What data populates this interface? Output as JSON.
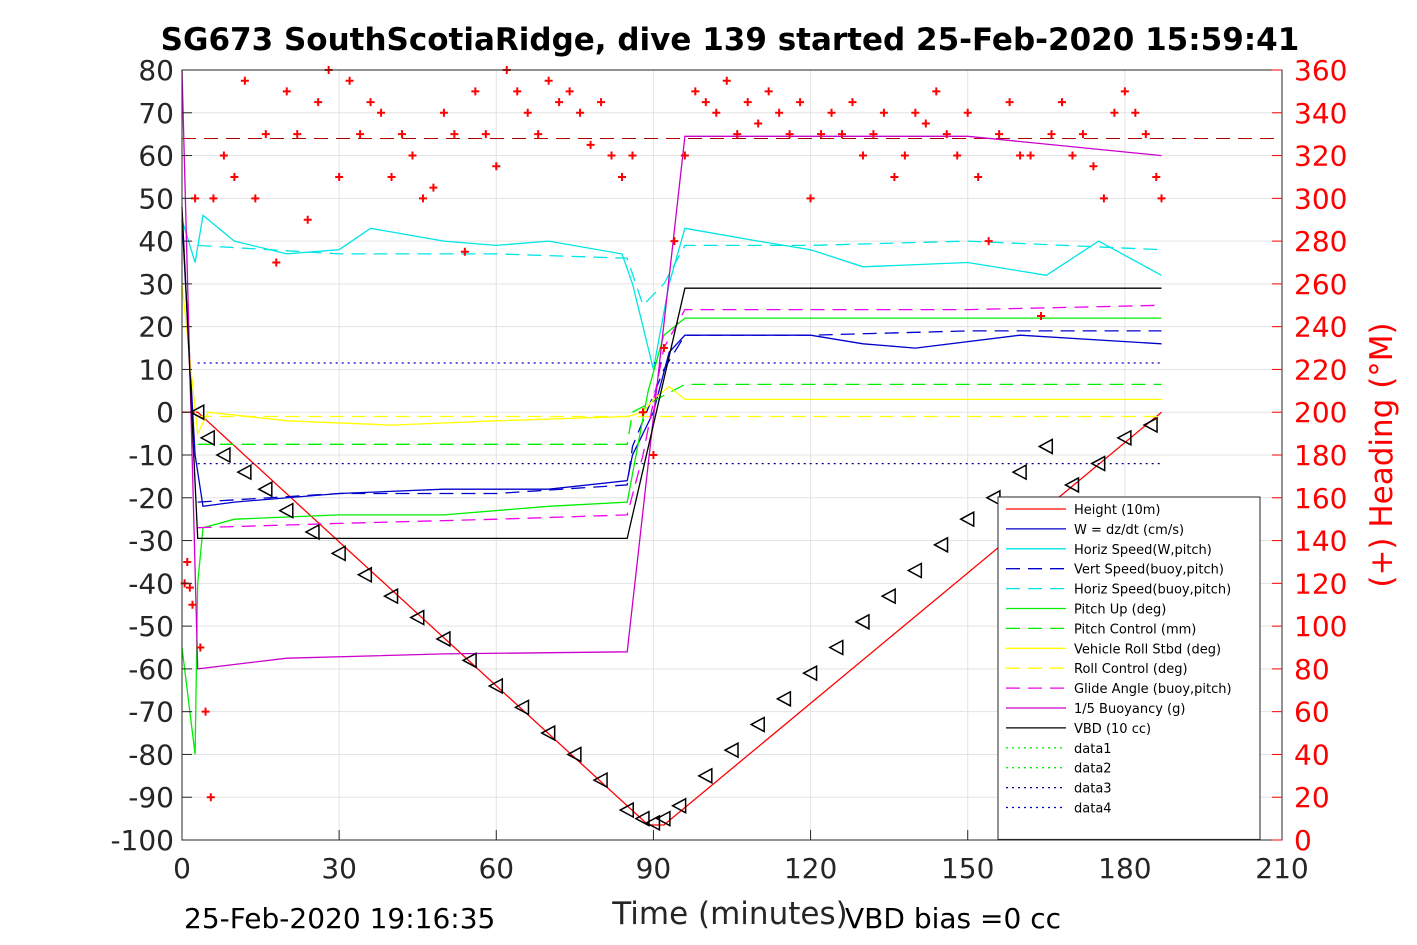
{
  "chart_data": {
    "type": "line",
    "title": "SG673 SouthScotiaRidge, dive 139 started 25-Feb-2020 15:59:41",
    "xlabel": "Time (minutes)",
    "ylabel_right": "(+) Heading (°M)",
    "footer_left": "25-Feb-2020 19:16:35",
    "footer_right": "VBD bias =0 cc",
    "xlim": [
      0,
      210
    ],
    "ylim": [
      -100,
      80
    ],
    "ylim_right": [
      0,
      360
    ],
    "xticks": [
      0,
      30,
      60,
      90,
      120,
      150,
      180,
      210
    ],
    "yticks": [
      -100,
      -90,
      -80,
      -70,
      -60,
      -50,
      -40,
      -30,
      -20,
      -10,
      0,
      10,
      20,
      30,
      40,
      50,
      60,
      70,
      80
    ],
    "yticks_right": [
      0,
      20,
      40,
      60,
      80,
      100,
      120,
      140,
      160,
      180,
      200,
      220,
      240,
      260,
      280,
      300,
      320,
      340,
      360
    ],
    "grid": true,
    "legend_position": "bottom-right",
    "colors": {
      "height": "#ff0000",
      "w": "#0000cc",
      "horiz_speed": "#00e5e5",
      "pitch": "#00ee00",
      "roll": "#ffff00",
      "glide": "#ee00ee",
      "buoyancy": "#cc00cc",
      "vbd": "#000000",
      "heading": "#ff0000",
      "data3": "#000080",
      "data4": "#0000cc"
    },
    "series": [
      {
        "name": "Height (10m)",
        "key": "height",
        "style": "solid",
        "x": [
          0,
          3,
          89,
          92,
          187
        ],
        "y": [
          0,
          0,
          -96.5,
          -96.5,
          0
        ]
      },
      {
        "name": "W = dz/dt (cm/s)",
        "key": "w",
        "style": "solid",
        "x": [
          0,
          2.5,
          4,
          10,
          30,
          50,
          70,
          85,
          86,
          88,
          90,
          93,
          96,
          120,
          130,
          140,
          160,
          187
        ],
        "y": [
          45,
          -10,
          -22,
          -21,
          -19,
          -18,
          -18,
          -16,
          -10,
          -5,
          0,
          14,
          18,
          18,
          16,
          15,
          18,
          16
        ]
      },
      {
        "name": "Horiz Speed(W,pitch)",
        "key": "horiz_speed",
        "style": "solid",
        "x": [
          0,
          2.5,
          4,
          10,
          20,
          30,
          36,
          50,
          60,
          70,
          84,
          86,
          88,
          90,
          93,
          96,
          110,
          120,
          130,
          150,
          165,
          175,
          187
        ],
        "y": [
          45,
          35,
          46,
          40,
          37,
          38,
          43,
          40,
          39,
          40,
          37,
          30,
          20,
          10,
          30,
          43,
          40,
          38,
          34,
          35,
          32,
          40,
          32
        ]
      },
      {
        "name": "Vert Speed(buoy,pitch)",
        "key": "w",
        "style": "dash",
        "x": [
          3,
          30,
          60,
          85,
          86,
          88,
          92,
          96,
          120,
          150,
          187
        ],
        "y": [
          -21,
          -19,
          -19,
          -17,
          -8,
          -2,
          10,
          18,
          18,
          19,
          19
        ]
      },
      {
        "name": "Horiz Speed(buoy,pitch)",
        "key": "horiz_speed",
        "style": "dash",
        "x": [
          3,
          30,
          60,
          85,
          88,
          92,
          96,
          120,
          150,
          187
        ],
        "y": [
          39,
          37,
          37,
          36,
          25,
          30,
          39,
          39,
          40,
          38
        ]
      },
      {
        "name": "Pitch Up (deg)",
        "key": "pitch",
        "style": "solid",
        "x": [
          0,
          2.5,
          3,
          4,
          10,
          30,
          50,
          70,
          85,
          87,
          89,
          92,
          96,
          120,
          150,
          187
        ],
        "y": [
          -55,
          -80,
          -40,
          -27,
          -25,
          -24,
          -24,
          -22,
          -21,
          -8,
          5,
          18,
          22,
          22,
          22,
          22
        ]
      },
      {
        "name": "Pitch Control (mm)",
        "key": "pitch",
        "style": "dash",
        "x": [
          3,
          85,
          86,
          96,
          187
        ],
        "y": [
          -7.5,
          -7.5,
          0,
          6.5,
          6.5
        ]
      },
      {
        "name": "Vehicle Roll Stbd (deg)",
        "key": "roll",
        "style": "solid",
        "x": [
          0,
          3,
          5,
          20,
          40,
          60,
          85,
          88,
          90,
          93,
          96,
          120,
          150,
          187
        ],
        "y": [
          30,
          -5,
          0,
          -2,
          -3,
          -2,
          -1,
          0,
          3,
          6,
          3,
          3,
          3,
          3
        ]
      },
      {
        "name": "Roll Control (deg)",
        "key": "roll",
        "style": "dash",
        "x": [
          3,
          85,
          187
        ],
        "y": [
          -1,
          -1,
          -1
        ]
      },
      {
        "name": "Glide Angle (buoy,pitch)",
        "key": "glide",
        "style": "dash",
        "x": [
          3,
          30,
          60,
          85,
          88,
          92,
          96,
          120,
          150,
          187
        ],
        "y": [
          -27,
          -26,
          -25,
          -24,
          -10,
          15,
          24,
          24,
          24,
          25
        ]
      },
      {
        "name": "1/5 Buoyancy (g)",
        "key": "buoyancy",
        "style": "solid",
        "x": [
          0,
          3,
          20,
          50,
          85,
          96,
          120,
          150,
          187
        ],
        "y": [
          80,
          -60,
          -57.5,
          -56.5,
          -56,
          64.5,
          64.5,
          64.5,
          60
        ]
      },
      {
        "name": "VBD (10 cc)",
        "key": "vbd",
        "style": "solid",
        "x": [
          0,
          3,
          85,
          96,
          187
        ],
        "y": [
          48,
          -29.5,
          -29.5,
          29,
          29
        ]
      },
      {
        "name": "data1",
        "key": "pitch",
        "style": "dot",
        "x": [],
        "y": []
      },
      {
        "name": "data2",
        "key": "pitch",
        "style": "dot",
        "x": [],
        "y": []
      },
      {
        "name": "data3",
        "key": "data3",
        "style": "dot",
        "x": [
          3,
          187
        ],
        "y": [
          -12,
          -12
        ]
      },
      {
        "name": "data4",
        "key": "data4",
        "style": "dot",
        "x": [
          3,
          187
        ],
        "y": [
          11.5,
          11.5
        ]
      }
    ],
    "reference_line": {
      "y_right": 328,
      "style": "dash",
      "color": "#aa0000"
    },
    "heading_markers": {
      "marker": "+",
      "axis": "right",
      "x": [
        0.5,
        1,
        1.5,
        2,
        2.5,
        3.5,
        4.5,
        5.5,
        6,
        8,
        10,
        12,
        14,
        16,
        18,
        20,
        22,
        24,
        26,
        28,
        30,
        32,
        34,
        36,
        38,
        40,
        42,
        44,
        46,
        48,
        50,
        52,
        54,
        56,
        58,
        60,
        62,
        64,
        66,
        68,
        70,
        72,
        74,
        76,
        78,
        80,
        82,
        84,
        86,
        88,
        90,
        92,
        94,
        96,
        98,
        100,
        102,
        104,
        106,
        108,
        110,
        112,
        114,
        116,
        118,
        120,
        122,
        124,
        126,
        128,
        130,
        132,
        134,
        136,
        138,
        140,
        142,
        144,
        146,
        148,
        150,
        152,
        154,
        156,
        158,
        160,
        162,
        164,
        166,
        168,
        170,
        172,
        174,
        176,
        178,
        180,
        182,
        184,
        186,
        187
      ],
      "y": [
        120,
        130,
        118,
        110,
        300,
        90,
        60,
        20,
        300,
        320,
        310,
        355,
        300,
        330,
        270,
        350,
        330,
        290,
        345,
        360,
        310,
        355,
        330,
        345,
        340,
        310,
        330,
        320,
        300,
        305,
        340,
        330,
        275,
        350,
        330,
        315,
        360,
        350,
        340,
        330,
        355,
        345,
        350,
        340,
        325,
        345,
        320,
        310,
        320,
        200,
        180,
        230,
        280,
        320,
        350,
        345,
        340,
        355,
        330,
        345,
        335,
        350,
        340,
        330,
        345,
        300,
        330,
        340,
        330,
        345,
        320,
        330,
        340,
        310,
        320,
        340,
        335,
        350,
        330,
        320,
        340,
        310,
        280,
        330,
        345,
        320,
        320,
        245,
        330,
        345,
        320,
        330,
        315,
        300,
        340,
        350,
        340,
        330,
        310,
        300
      ]
    },
    "depth_markers": {
      "marker": "triangle",
      "x": [
        3,
        5,
        8,
        12,
        16,
        20,
        25,
        30,
        35,
        40,
        45,
        50,
        55,
        60,
        65,
        70,
        75,
        80,
        85,
        88,
        90,
        92,
        95,
        100,
        105,
        110,
        115,
        120,
        125,
        130,
        135,
        140,
        145,
        150,
        155,
        160,
        165,
        170,
        175,
        180,
        185
      ],
      "y": [
        0,
        -6,
        -10,
        -14,
        -18,
        -23,
        -28,
        -33,
        -38,
        -43,
        -48,
        -53,
        -58,
        -64,
        -69,
        -75,
        -80,
        -86,
        -93,
        -95,
        -96,
        -95,
        -92,
        -85,
        -79,
        -73,
        -67,
        -61,
        -55,
        -49,
        -43,
        -37,
        -31,
        -25,
        -20,
        -14,
        -8,
        -17,
        -12,
        -6,
        -3
      ]
    }
  }
}
